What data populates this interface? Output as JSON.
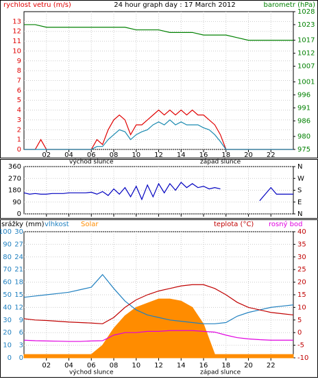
{
  "chart_data": [
    {
      "type": "line",
      "title": "24 hour graph day : 17 March 2012",
      "ylabel": "rychlost vetru (m/s)",
      "y2label": "barometr (hPa)",
      "ylim": [
        0,
        14
      ],
      "yticks": [
        0,
        1,
        2,
        3,
        4,
        5,
        6,
        7,
        8,
        9,
        10,
        11,
        12,
        13
      ],
      "y2lim": [
        975,
        1028
      ],
      "y2ticks": [
        975,
        980,
        986,
        991,
        996,
        1001,
        1007,
        1012,
        1017,
        1023,
        1028
      ],
      "xlim": [
        0,
        24
      ],
      "xticks": [
        {
          "value": 2,
          "label": "02"
        },
        {
          "value": 4,
          "label": "04"
        },
        {
          "value": 6,
          "label": "06"
        },
        {
          "value": 8,
          "label": "08"
        },
        {
          "value": 10,
          "label": "10"
        },
        {
          "value": 12,
          "label": "12"
        },
        {
          "value": 14,
          "label": "14"
        },
        {
          "value": 16,
          "label": "16"
        },
        {
          "value": 18,
          "label": "18"
        },
        {
          "value": 20,
          "label": "20"
        },
        {
          "value": 22,
          "label": "22"
        }
      ],
      "annotations": [
        {
          "x": 6,
          "text": "východ slunce"
        },
        {
          "x": 17.5,
          "text": "západ slunce"
        }
      ],
      "grid": true,
      "series": [
        {
          "color": "#e00000",
          "x": [
            0,
            0.5,
            1,
            1.5,
            2,
            2.5,
            3,
            3.5,
            4,
            4.5,
            5,
            5.5,
            6,
            6.5,
            7,
            7.5,
            8,
            8.5,
            9,
            9.5,
            10,
            10.5,
            11,
            11.5,
            12,
            12.5,
            13,
            13.5,
            14,
            14.5,
            15,
            15.5,
            16,
            16.5,
            17,
            17.5,
            18,
            18.5,
            19,
            19.5,
            20,
            20.5,
            21,
            21.5,
            22,
            22.5,
            23,
            23.5,
            24
          ],
          "values": [
            0,
            0,
            0,
            1,
            0,
            0,
            0,
            0,
            0,
            0,
            0,
            0,
            0,
            1,
            0.5,
            2,
            3,
            3.5,
            3,
            1.5,
            2.5,
            2.5,
            3,
            3.5,
            4,
            3.5,
            4,
            3.5,
            4,
            3.5,
            4,
            3.5,
            3.5,
            3,
            2.5,
            1.5,
            0,
            0,
            0,
            0,
            0,
            0,
            0,
            0,
            0,
            0,
            0,
            0,
            0
          ]
        },
        {
          "color": "#1a8ab0",
          "x": [
            0,
            0.5,
            1,
            1.5,
            2,
            2.5,
            3,
            3.5,
            4,
            4.5,
            5,
            5.5,
            6,
            6.5,
            7,
            7.5,
            8,
            8.5,
            9,
            9.5,
            10,
            10.5,
            11,
            11.5,
            12,
            12.5,
            13,
            13.5,
            14,
            14.5,
            15,
            15.5,
            16,
            16.5,
            17,
            17.5,
            18,
            18.5,
            19,
            19.5,
            20,
            20.5,
            21,
            21.5,
            22,
            22.5,
            23,
            23.5,
            24
          ],
          "values": [
            0,
            0,
            0,
            0,
            0,
            0,
            0,
            0,
            0,
            0,
            0,
            0,
            0,
            0.3,
            0.3,
            1,
            1.5,
            2,
            1.8,
            1,
            1.5,
            1.8,
            2,
            2.5,
            2.8,
            2.5,
            3,
            2.5,
            2.8,
            2.5,
            2.5,
            2.5,
            2.2,
            2,
            1.5,
            0.8,
            0,
            0,
            0,
            0,
            0,
            0,
            0,
            0,
            0,
            0,
            0,
            0,
            0
          ]
        },
        {
          "color": "#008000",
          "axis": "y2",
          "x": [
            0,
            1,
            2,
            3,
            4,
            5,
            6,
            7,
            8,
            9,
            10,
            11,
            12,
            13,
            14,
            15,
            16,
            17,
            18,
            19,
            20,
            21,
            22,
            23,
            24
          ],
          "values": [
            1023,
            1023,
            1022,
            1022,
            1022,
            1022,
            1022,
            1022,
            1022,
            1022,
            1021,
            1021,
            1021,
            1020,
            1020,
            1020,
            1019,
            1019,
            1019,
            1018,
            1017,
            1017,
            1017,
            1017,
            1017
          ]
        }
      ]
    },
    {
      "type": "line",
      "ylim": [
        0,
        360
      ],
      "yticks": [
        0,
        90,
        180,
        270,
        360
      ],
      "y2lim": [
        0,
        360
      ],
      "y2ticks": [
        {
          "value": 0,
          "label": "N"
        },
        {
          "value": 90,
          "label": "E"
        },
        {
          "value": 180,
          "label": "S"
        },
        {
          "value": 270,
          "label": "W"
        },
        {
          "value": 360,
          "label": "N"
        }
      ],
      "xlim": [
        0,
        24
      ],
      "xticks": [
        {
          "value": 2,
          "label": "02"
        },
        {
          "value": 4,
          "label": "04"
        },
        {
          "value": 6,
          "label": "06"
        },
        {
          "value": 8,
          "label": "08"
        },
        {
          "value": 10,
          "label": "10"
        },
        {
          "value": 12,
          "label": "12"
        },
        {
          "value": 14,
          "label": "14"
        },
        {
          "value": 16,
          "label": "16"
        },
        {
          "value": 18,
          "label": "18"
        },
        {
          "value": 20,
          "label": "20"
        },
        {
          "value": 22,
          "label": "22"
        }
      ],
      "grid": true,
      "series": [
        {
          "color": "#0000c0",
          "x": [
            0,
            0.5,
            1,
            1.5,
            2,
            2.5,
            3,
            3.5,
            4,
            4.5,
            5,
            5.5,
            6,
            6.5,
            7,
            7.5,
            8,
            8.5,
            9,
            9.5,
            10,
            10.5,
            11,
            11.5,
            12,
            12.5,
            13,
            13.5,
            14,
            14.5,
            15,
            15.5,
            16,
            16.5,
            17,
            17.5,
            18,
            18.5,
            19,
            19.5,
            20,
            20.5,
            21,
            21.5,
            22,
            22.5,
            23,
            23.5,
            24
          ],
          "values": [
            160,
            150,
            155,
            150,
            150,
            155,
            155,
            155,
            160,
            160,
            160,
            160,
            165,
            150,
            170,
            140,
            190,
            150,
            200,
            130,
            210,
            110,
            220,
            130,
            230,
            160,
            230,
            180,
            240,
            200,
            230,
            200,
            210,
            190,
            200,
            190,
            null,
            null,
            null,
            null,
            null,
            null,
            100,
            150,
            200,
            150,
            150,
            150,
            150
          ]
        }
      ]
    },
    {
      "type": "line",
      "ylabel": "srážky (mm)",
      "y2label": "teplota (°C)",
      "ylim": [
        0,
        30
      ],
      "yticks": [
        0,
        3,
        6,
        9,
        12,
        15,
        18,
        21,
        24,
        27,
        30
      ],
      "y3lim": [
        0,
        100
      ],
      "y3ticks": [
        0,
        10,
        20,
        30,
        40,
        50,
        60,
        70,
        80,
        90,
        100
      ],
      "y2lim": [
        -10,
        40
      ],
      "y2ticks": [
        -10,
        -5,
        0,
        5,
        10,
        15,
        20,
        25,
        30,
        35,
        40
      ],
      "xlim": [
        0,
        24
      ],
      "xticks": [
        {
          "value": 2,
          "label": "02"
        },
        {
          "value": 4,
          "label": "04"
        },
        {
          "value": 6,
          "label": "06"
        },
        {
          "value": 8,
          "label": "08"
        },
        {
          "value": 10,
          "label": "10"
        },
        {
          "value": 12,
          "label": "12"
        },
        {
          "value": 14,
          "label": "14"
        },
        {
          "value": 16,
          "label": "16"
        },
        {
          "value": 18,
          "label": "18"
        },
        {
          "value": 20,
          "label": "20"
        },
        {
          "value": 22,
          "label": "22"
        }
      ],
      "annotations": [
        {
          "x": 6,
          "text": "východ slunce"
        },
        {
          "x": 17.5,
          "text": "západ slunce"
        }
      ],
      "grid": true,
      "series": [
        {
          "name": "Solar",
          "color": "#ff8c00",
          "style": "area",
          "x": [
            0,
            1,
            2,
            3,
            4,
            5,
            6,
            7,
            8,
            9,
            10,
            11,
            12,
            13,
            14,
            15,
            16,
            17,
            18,
            19,
            20,
            21,
            22,
            23,
            24
          ],
          "values": [
            0.8,
            0.8,
            0.8,
            0.8,
            0.8,
            0.8,
            0.8,
            3,
            7,
            10,
            12,
            13,
            14,
            14,
            13.5,
            12,
            8,
            0.8,
            0.8,
            0.8,
            0.8,
            0.8,
            0.8,
            0.8,
            0.8
          ]
        },
        {
          "name": "vlhkost",
          "color": "#2080c0",
          "axis": "y3",
          "x": [
            0,
            1,
            2,
            3,
            4,
            5,
            6,
            7,
            8,
            9,
            10,
            11,
            12,
            13,
            14,
            15,
            16,
            17,
            18,
            19,
            20,
            21,
            22,
            23,
            24
          ],
          "values": [
            48,
            49,
            50,
            51,
            52,
            54,
            56,
            66,
            55,
            45,
            38,
            34,
            32,
            30,
            29,
            28,
            27,
            27,
            28,
            33,
            36,
            38,
            40,
            41,
            42
          ]
        },
        {
          "name": "teplota (°C)",
          "color": "#c00000",
          "axis": "y2",
          "x": [
            0,
            1,
            2,
            3,
            4,
            5,
            6,
            7,
            8,
            9,
            10,
            11,
            12,
            13,
            14,
            15,
            16,
            17,
            18,
            19,
            20,
            21,
            22,
            23,
            24
          ],
          "values": [
            5.5,
            5,
            4.8,
            4.5,
            4.2,
            4,
            3.8,
            3.5,
            6,
            10,
            13,
            15,
            16.5,
            17.5,
            18.5,
            19,
            19,
            17.5,
            15,
            12,
            10,
            9,
            8,
            7.5,
            7
          ]
        },
        {
          "name": "rosný bod",
          "color": "#e000e0",
          "axis": "y2",
          "x": [
            0,
            1,
            2,
            3,
            4,
            5,
            6,
            7,
            8,
            9,
            10,
            11,
            12,
            13,
            14,
            15,
            16,
            17,
            18,
            19,
            20,
            21,
            22,
            23,
            24
          ],
          "values": [
            -3,
            -3.2,
            -3.3,
            -3.4,
            -3.5,
            -3.5,
            -3.3,
            -3.2,
            -1,
            0,
            0,
            0.5,
            0.5,
            0.8,
            0.8,
            0.8,
            0.5,
            0.2,
            -1,
            -2,
            -2.5,
            -2.8,
            -3,
            -3,
            -3
          ]
        }
      ]
    }
  ]
}
